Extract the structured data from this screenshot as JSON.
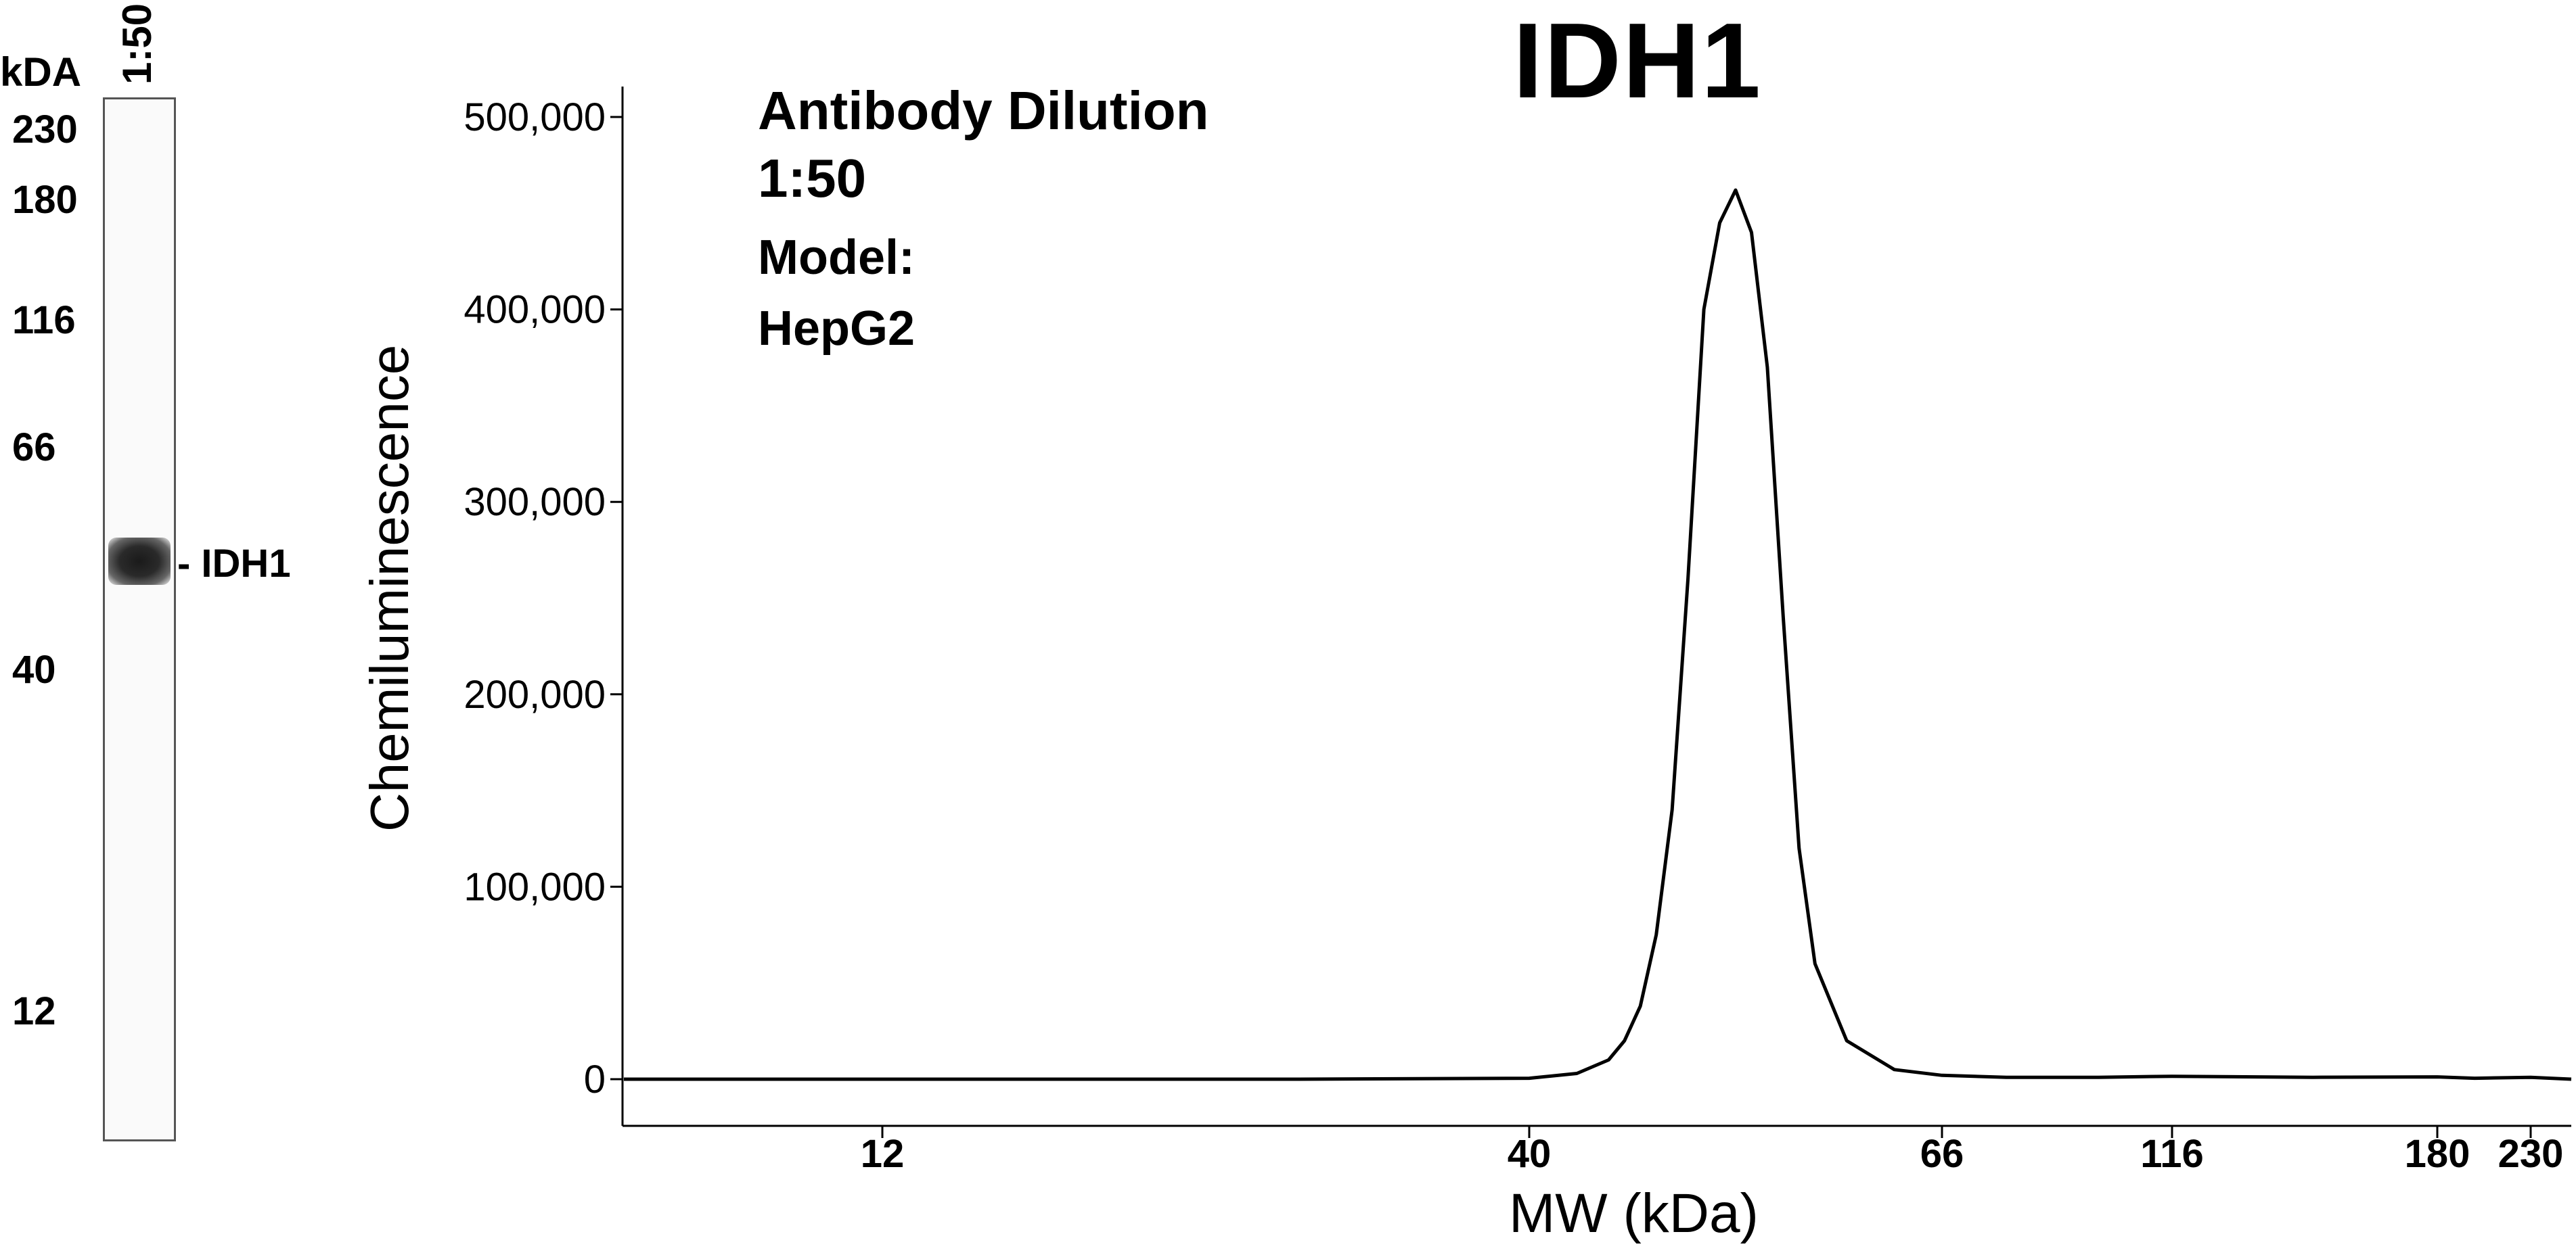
{
  "gel": {
    "unit_label": "kDA",
    "lane_header": "1:50",
    "markers": [
      "230",
      "180",
      "116",
      "66",
      "40",
      "12"
    ],
    "band_label": "- IDH1"
  },
  "chart_data": {
    "type": "line",
    "title": "IDH1",
    "xlabel": "MW (kDa)",
    "ylabel": "Chemiluminescence",
    "annotations": [
      "Antibody Dilution",
      "1:50",
      "Model:",
      "HepG2"
    ],
    "x_ticks": [
      "12",
      "40",
      "66",
      "116",
      "180",
      "230"
    ],
    "y_ticks": [
      "0",
      "100,000",
      "200,000",
      "300,000",
      "400,000",
      "500,000"
    ],
    "ylim": [
      0,
      500000
    ],
    "grid": false,
    "legend": "none",
    "series": [
      {
        "x": [
          8,
          12,
          20,
          30,
          40,
          43,
          45,
          46,
          47,
          48,
          49,
          50,
          51,
          52,
          53,
          54,
          55,
          56,
          57,
          58,
          60,
          63,
          66,
          80,
          100,
          116,
          150,
          180,
          200,
          230,
          255
        ],
        "y": [
          0,
          0,
          0,
          0,
          500,
          3000,
          10000,
          20000,
          38000,
          75000,
          140000,
          260000,
          400000,
          445000,
          462000,
          440000,
          370000,
          240000,
          120000,
          60000,
          20000,
          5000,
          2000,
          1000,
          1000,
          1500,
          1000,
          1200,
          500,
          1000,
          0
        ],
        "color": "#000000"
      }
    ]
  }
}
